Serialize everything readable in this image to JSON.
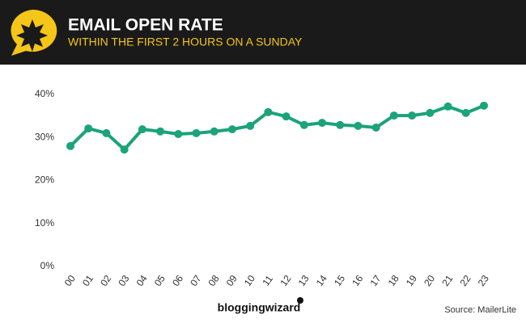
{
  "chart_data": {
    "type": "line",
    "title": "EMAIL OPEN RATE",
    "subtitle": "WITHIN THE FIRST 2 HOURS ON A SUNDAY",
    "categories": [
      "00",
      "01",
      "02",
      "03",
      "04",
      "05",
      "06",
      "07",
      "08",
      "09",
      "10",
      "11",
      "12",
      "13",
      "14",
      "15",
      "16",
      "17",
      "18",
      "19",
      "20",
      "21",
      "22",
      "23"
    ],
    "values": [
      28.0,
      32.1,
      31.0,
      27.2,
      31.9,
      31.4,
      30.8,
      31.0,
      31.4,
      31.9,
      32.7,
      35.9,
      34.9,
      32.9,
      33.4,
      32.9,
      32.7,
      32.3,
      35.1,
      35.1,
      35.7,
      37.2,
      35.7,
      37.4
    ],
    "color": "#1ba37b",
    "ylim": [
      0,
      40
    ],
    "yticks": [
      {
        "value": 0,
        "label": "0%"
      },
      {
        "value": 10,
        "label": "10%"
      },
      {
        "value": 20,
        "label": "20%"
      },
      {
        "value": 30,
        "label": "30%"
      },
      {
        "value": 40,
        "label": "40%"
      }
    ],
    "grid": false,
    "brand": "bloggingwizard",
    "source": "Source: MailerLite"
  }
}
